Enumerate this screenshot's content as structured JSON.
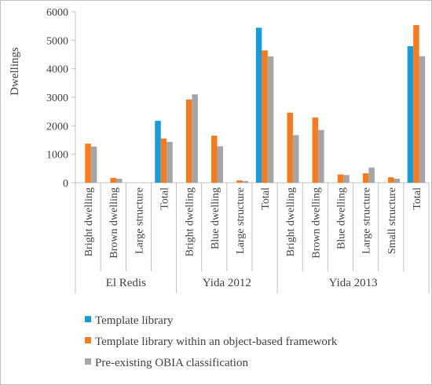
{
  "chart_data": {
    "type": "bar",
    "ylabel": "Dwellings",
    "ylim": [
      0,
      6000
    ],
    "yticks": [
      0,
      1000,
      2000,
      3000,
      4000,
      5000,
      6000
    ],
    "grid": false,
    "legend_position": "bottom",
    "groups": [
      {
        "label": "El Redis",
        "categories": [
          "Bright dwelling",
          "Brown dwelling",
          "Large structure",
          "Total"
        ]
      },
      {
        "label": "Yida 2012",
        "categories": [
          "Bright dwelling",
          "Blue dwelling",
          "Large structure",
          "Total"
        ]
      },
      {
        "label": "Yida 2013",
        "categories": [
          "Bright dwelling",
          "Brown dwelling",
          "Blue dwelling",
          "Large structure",
          "Small structure",
          "Total"
        ]
      }
    ],
    "categories": [
      "Bright dwelling",
      "Brown dwelling",
      "Large structure",
      "Total",
      "Bright dwelling",
      "Blue dwelling",
      "Large structure",
      "Total",
      "Bright dwelling",
      "Brown dwelling",
      "Blue dwelling",
      "Large structure",
      "Small structure",
      "Total"
    ],
    "series": [
      {
        "name": "Template library",
        "color": "#1a9ad6",
        "values": [
          0,
          0,
          0,
          2170,
          0,
          0,
          0,
          5440,
          0,
          0,
          0,
          0,
          0,
          4790
        ]
      },
      {
        "name": "Template library within an object-based framework",
        "color": "#f47b20",
        "values": [
          1370,
          170,
          0,
          1550,
          2920,
          1650,
          80,
          4640,
          2460,
          2290,
          290,
          330,
          190,
          5530
        ]
      },
      {
        "name": "Pre-existing OBIA classification",
        "color": "#a5a5a5",
        "values": [
          1270,
          140,
          0,
          1430,
          3100,
          1280,
          60,
          4430,
          1670,
          1850,
          270,
          530,
          140,
          4440
        ]
      }
    ]
  }
}
